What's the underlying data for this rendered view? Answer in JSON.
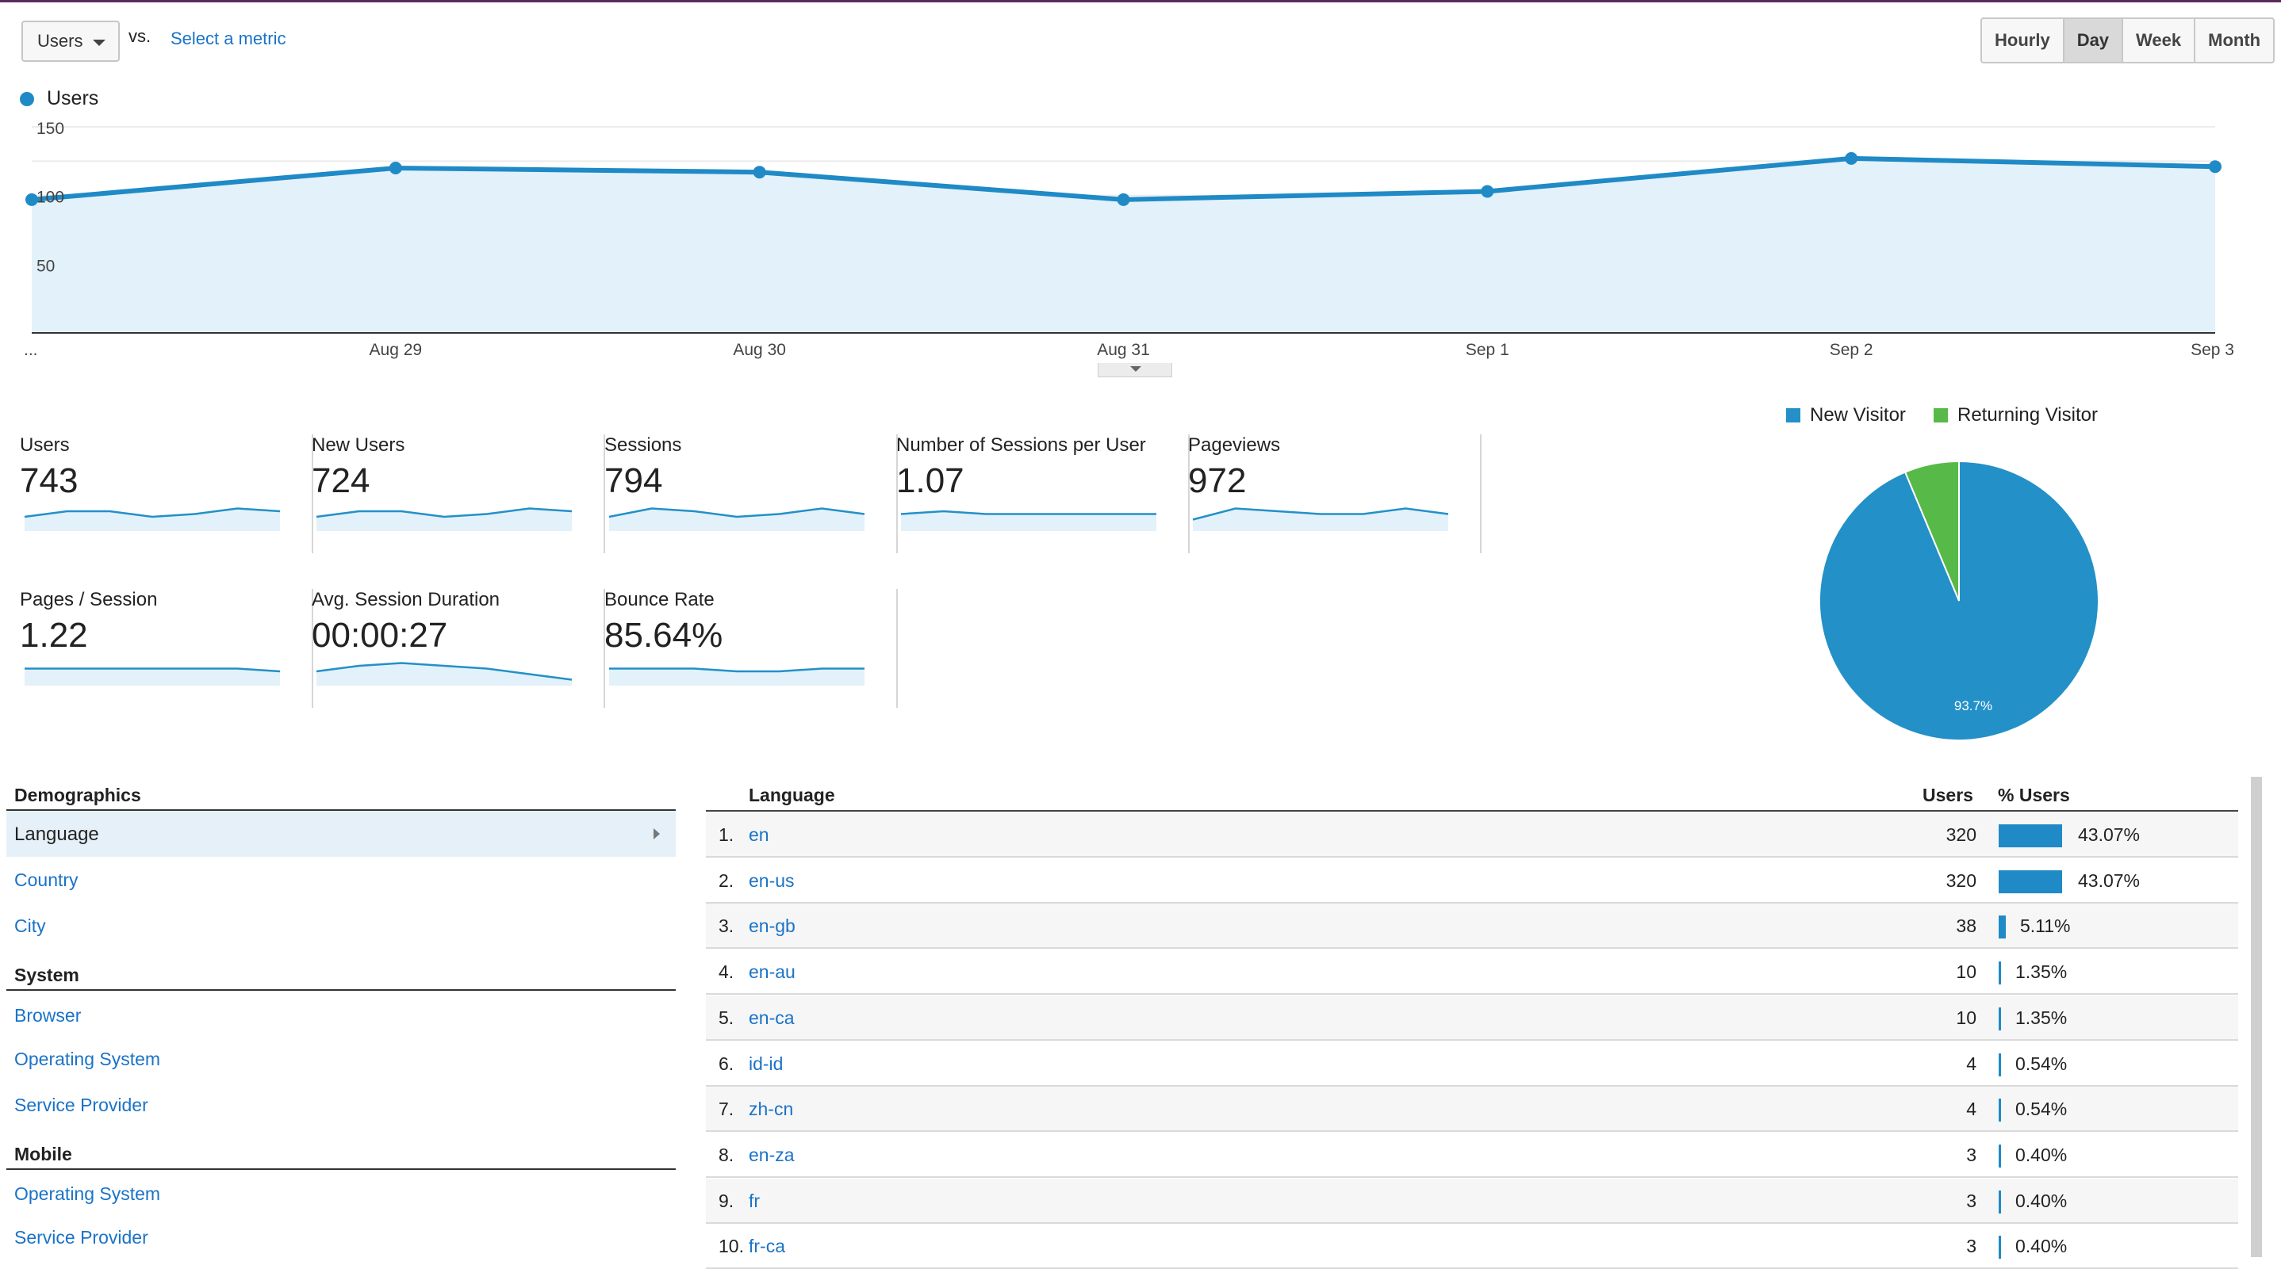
{
  "controls": {
    "metric_select": "Users",
    "vs_label": "vs.",
    "select_metric_link": "Select a metric",
    "ranges": [
      "Hourly",
      "Day",
      "Week",
      "Month"
    ],
    "active_range": "Day"
  },
  "chart_data": {
    "type": "area",
    "series": [
      {
        "name": "Users",
        "values": [
          97,
          120,
          117,
          97,
          103,
          127,
          121
        ]
      }
    ],
    "x": [
      "...",
      "Aug 29",
      "Aug 30",
      "Aug 31",
      "Sep 1",
      "Sep 2",
      "Sep 3"
    ],
    "yticks": [
      150,
      100,
      50
    ],
    "ylim": [
      0,
      150
    ],
    "grid": true,
    "color": "#1f8ac6"
  },
  "metrics": [
    {
      "label": "Users",
      "value": "743",
      "spark": [
        4,
        6,
        6,
        4,
        5,
        7,
        6
      ]
    },
    {
      "label": "New Users",
      "value": "724",
      "spark": [
        4,
        6,
        6,
        4,
        5,
        7,
        6
      ]
    },
    {
      "label": "Sessions",
      "value": "794",
      "spark": [
        4,
        7,
        6,
        4,
        5,
        7,
        5
      ]
    },
    {
      "label": "Number of Sessions per User",
      "value": "1.07",
      "spark": [
        5,
        6,
        5,
        5,
        5,
        5,
        5
      ]
    },
    {
      "label": "Pageviews",
      "value": "972",
      "spark": [
        3,
        7,
        6,
        5,
        5,
        7,
        5
      ]
    },
    {
      "label": "Pages / Session",
      "value": "1.22",
      "spark": [
        5,
        5,
        5,
        5,
        5,
        5,
        4
      ]
    },
    {
      "label": "Avg. Session Duration",
      "value": "00:00:27",
      "spark": [
        4,
        6,
        7,
        6,
        5,
        3,
        1
      ]
    },
    {
      "label": "Bounce Rate",
      "value": "85.64%",
      "spark": [
        5,
        5,
        5,
        4,
        4,
        5,
        5
      ]
    }
  ],
  "pie": {
    "legend": [
      {
        "label": "New Visitor",
        "color": "#2390c8"
      },
      {
        "label": "Returning Visitor",
        "color": "#57b947"
      }
    ],
    "values": [
      93.7,
      6.3
    ],
    "slice_label": "93.7%"
  },
  "nav": {
    "sections": [
      {
        "title": "Demographics",
        "items": [
          "Language",
          "Country",
          "City"
        ]
      },
      {
        "title": "System",
        "items": [
          "Browser",
          "Operating System",
          "Service Provider"
        ]
      },
      {
        "title": "Mobile",
        "items": [
          "Operating System",
          "Service Provider"
        ]
      }
    ],
    "active": "Language"
  },
  "table": {
    "headers": {
      "dimension": "Language",
      "users": "Users",
      "pct": "% Users"
    },
    "rows": [
      {
        "idx": "1.",
        "lang": "en",
        "users": "320",
        "pct": "43.07%",
        "share": 43.07
      },
      {
        "idx": "2.",
        "lang": "en-us",
        "users": "320",
        "pct": "43.07%",
        "share": 43.07
      },
      {
        "idx": "3.",
        "lang": "en-gb",
        "users": "38",
        "pct": "5.11%",
        "share": 5.11
      },
      {
        "idx": "4.",
        "lang": "en-au",
        "users": "10",
        "pct": "1.35%",
        "share": 1.35
      },
      {
        "idx": "5.",
        "lang": "en-ca",
        "users": "10",
        "pct": "1.35%",
        "share": 1.35
      },
      {
        "idx": "6.",
        "lang": "id-id",
        "users": "4",
        "pct": "0.54%",
        "share": 0.54
      },
      {
        "idx": "7.",
        "lang": "zh-cn",
        "users": "4",
        "pct": "0.54%",
        "share": 0.54
      },
      {
        "idx": "8.",
        "lang": "en-za",
        "users": "3",
        "pct": "0.40%",
        "share": 0.4
      },
      {
        "idx": "9.",
        "lang": "fr",
        "users": "3",
        "pct": "0.40%",
        "share": 0.4
      },
      {
        "idx": "10.",
        "lang": "fr-ca",
        "users": "3",
        "pct": "0.40%",
        "share": 0.4
      }
    ]
  }
}
